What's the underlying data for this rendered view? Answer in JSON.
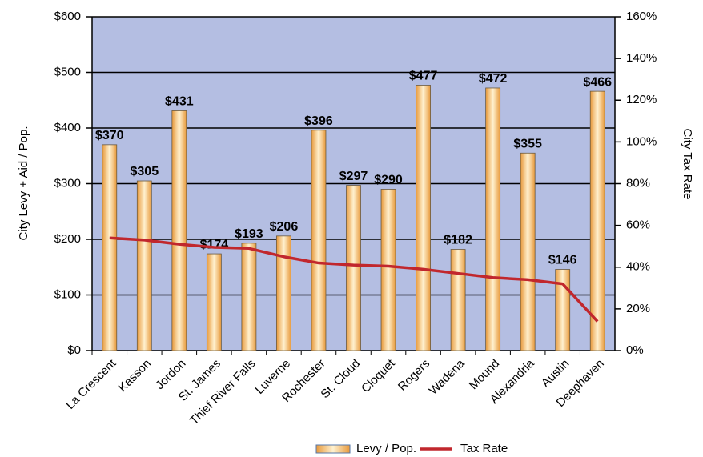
{
  "chart_data": {
    "type": "bar",
    "categories": [
      "La Crescent",
      "Kasson",
      "Jordon",
      "St. James",
      "Thief River Falls",
      "Luverne",
      "Rochester",
      "St. Cloud",
      "Cloquet",
      "Rogers",
      "Wadena",
      "Mound",
      "Alexandria",
      "Austin",
      "Deephaven"
    ],
    "series": [
      {
        "name": "Levy / Pop.",
        "color": "#f7b75a",
        "values": [
          370,
          305,
          431,
          174,
          193,
          206,
          396,
          297,
          290,
          477,
          182,
          472,
          355,
          146,
          466
        ],
        "value_labels": [
          "$370",
          "$305",
          "$431",
          "$174",
          "$193",
          "$206",
          "$396",
          "$297",
          "$290",
          "$477",
          "$182",
          "$472",
          "$355",
          "$146",
          "$466"
        ]
      },
      {
        "name": "Tax Rate",
        "type": "line",
        "axis": "y2",
        "color": "#c1272d",
        "values": [
          54,
          53,
          51,
          49.5,
          49,
          45,
          42,
          41,
          40.5,
          39,
          37,
          35,
          34,
          32,
          14
        ]
      }
    ],
    "ylabel": "City Levy + Aid / Pop.",
    "y2label": "City Tax Rate",
    "ylim": [
      0,
      600
    ],
    "yticks": [
      {
        "value": 0,
        "label": "$0"
      },
      {
        "value": 100,
        "label": "$100"
      },
      {
        "value": 200,
        "label": "$200"
      },
      {
        "value": 300,
        "label": "$300"
      },
      {
        "value": 400,
        "label": "$400"
      },
      {
        "value": 500,
        "label": "$500"
      },
      {
        "value": 600,
        "label": "$600"
      }
    ],
    "y2lim": [
      0,
      160
    ],
    "y2ticks": [
      {
        "value": 0,
        "label": "0%"
      },
      {
        "value": 20,
        "label": "20%"
      },
      {
        "value": 40,
        "label": "40%"
      },
      {
        "value": 60,
        "label": "60%"
      },
      {
        "value": 80,
        "label": "80%"
      },
      {
        "value": 100,
        "label": "100%"
      },
      {
        "value": 120,
        "label": "120%"
      },
      {
        "value": 140,
        "label": "140%"
      },
      {
        "value": 160,
        "label": "160%"
      }
    ],
    "grid": true,
    "legend": "bottom"
  }
}
